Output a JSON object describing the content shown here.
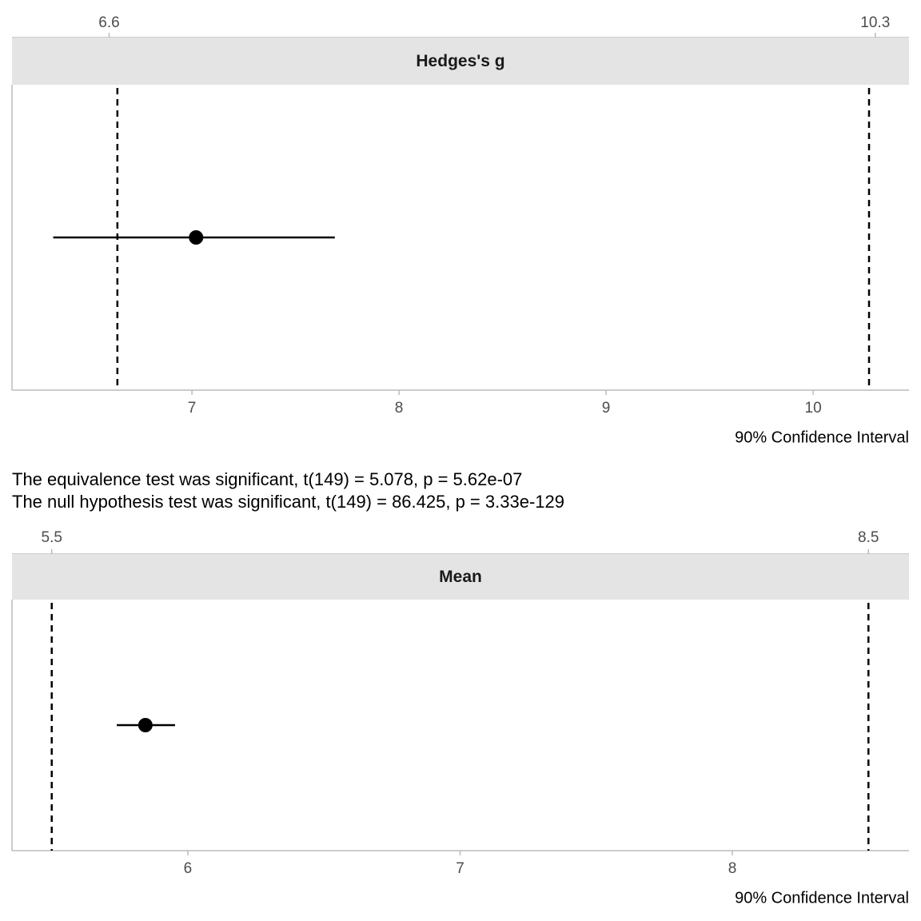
{
  "chart_data": [
    {
      "type": "pointrange",
      "title": "Hedges's g",
      "xlabel": "90% Confidence Interval",
      "xlim": [
        6.131,
        10.463
      ],
      "xticks": [
        7,
        8,
        9,
        10
      ],
      "x2ticks": [
        6.6,
        10.3
      ],
      "bounds": [
        6.64,
        10.27
      ],
      "estimate": 7.02,
      "lower": 6.33,
      "upper": 7.69,
      "color": "#000000"
    },
    {
      "type": "pointrange",
      "title": "Mean",
      "xlabel": "90% Confidence Interval",
      "xlim": [
        5.354,
        8.649
      ],
      "xticks": [
        6,
        7,
        8
      ],
      "x2ticks": [
        5.5,
        8.5
      ],
      "bounds": [
        5.5,
        8.5
      ],
      "estimate": 5.844,
      "lower": 5.739,
      "upper": 5.953,
      "color": "#000000"
    }
  ],
  "notes": [
    "The equivalence test was significant, t(149) = 5.078, p = 5.62e-07",
    "The null hypothesis test was significant, t(149) = 86.425, p = 3.33e-129"
  ]
}
